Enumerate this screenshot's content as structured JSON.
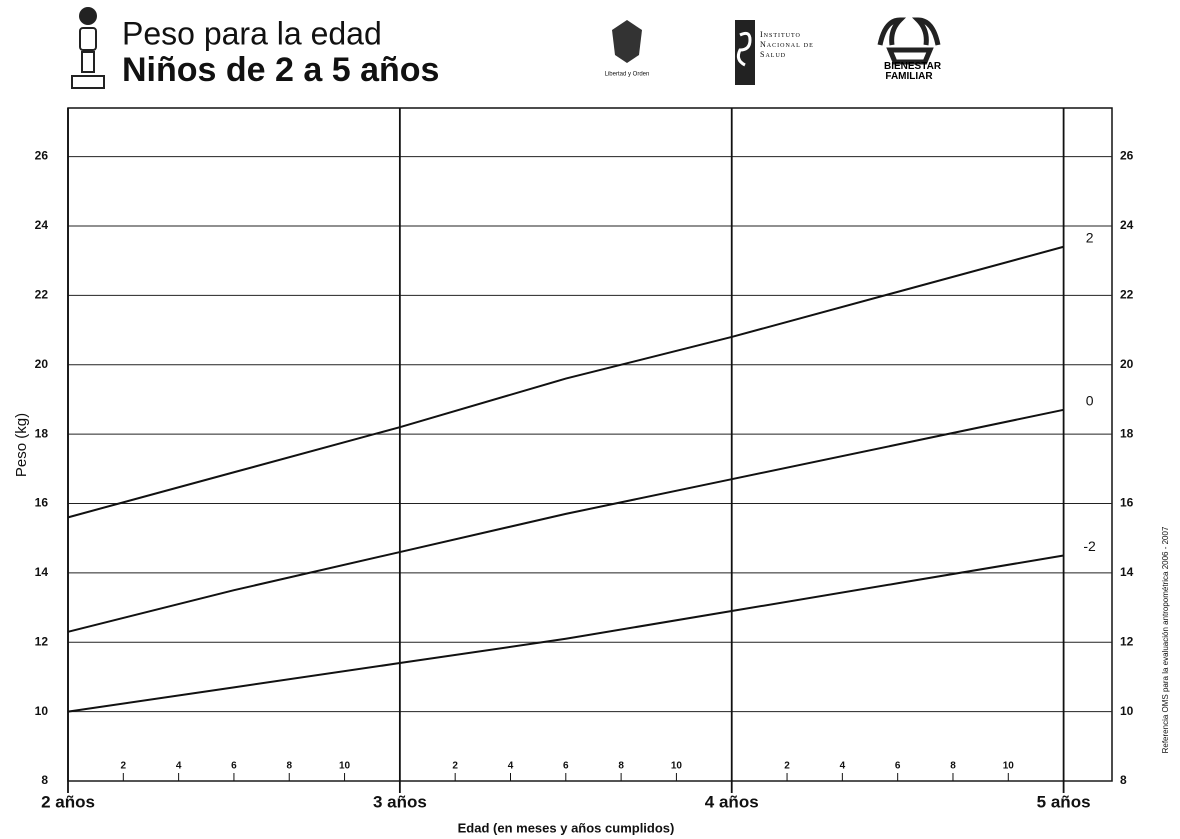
{
  "chart_data": {
    "type": "line",
    "title": "Peso para la edad",
    "subtitle": "Niños de 2 a 5 años",
    "x_label": "Edad (en meses y años cumplidos)",
    "y_label": "Peso (kg)",
    "logo_texts": [
      "Libertad y Orden",
      "Instituto Nacional de Salud",
      "Bienestar Familiar"
    ],
    "side_note": "Referencia OMS para la evaluación antropométrica  2006 - 2007",
    "x": [
      24,
      30,
      36,
      42,
      48,
      54,
      60
    ],
    "series": [
      {
        "name": "2",
        "color": "#111111",
        "values": [
          15.6,
          16.9,
          18.2,
          19.6,
          20.8,
          22.1,
          23.4
        ]
      },
      {
        "name": "0",
        "color": "#111111",
        "values": [
          12.3,
          13.5,
          14.6,
          15.7,
          16.7,
          17.7,
          18.7
        ]
      },
      {
        "name": "-2",
        "color": "#111111",
        "values": [
          10.0,
          10.7,
          11.4,
          12.1,
          12.9,
          13.7,
          14.5
        ]
      }
    ],
    "xlim": [
      24,
      61.75
    ],
    "xticks": [
      {
        "value": 24,
        "label": "2 años"
      },
      {
        "value": 26,
        "label": "2"
      },
      {
        "value": 28,
        "label": "4"
      },
      {
        "value": 30,
        "label": "6"
      },
      {
        "value": 32,
        "label": "8"
      },
      {
        "value": 34,
        "label": "10"
      },
      {
        "value": 36,
        "label": "3 años"
      },
      {
        "value": 38,
        "label": "2"
      },
      {
        "value": 40,
        "label": "4"
      },
      {
        "value": 42,
        "label": "6"
      },
      {
        "value": 44,
        "label": "8"
      },
      {
        "value": 46,
        "label": "10"
      },
      {
        "value": 48,
        "label": "4 años"
      },
      {
        "value": 50,
        "label": "2"
      },
      {
        "value": 52,
        "label": "4"
      },
      {
        "value": 54,
        "label": "6"
      },
      {
        "value": 56,
        "label": "8"
      },
      {
        "value": 58,
        "label": "10"
      },
      {
        "value": 60,
        "label": "5 años"
      }
    ],
    "major_xticks": [
      24,
      36,
      48,
      60
    ],
    "ylim": [
      8,
      27.4
    ],
    "yticks": [
      8,
      10,
      12,
      14,
      16,
      18,
      20,
      22,
      24,
      26
    ],
    "y2lim": [
      8,
      27.4
    ],
    "y2ticks": [
      8,
      10,
      12,
      14,
      16,
      18,
      20,
      22,
      24,
      26
    ],
    "grid": true
  }
}
